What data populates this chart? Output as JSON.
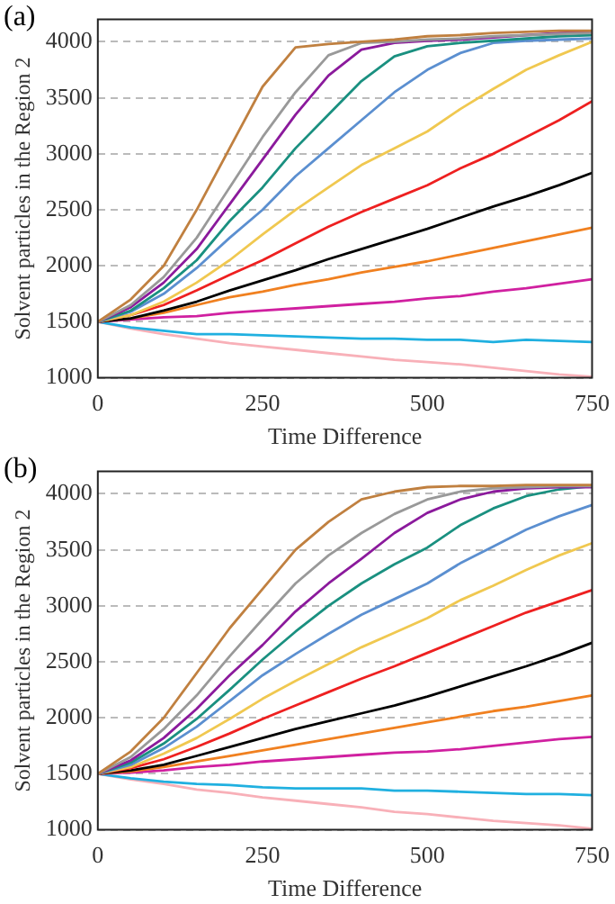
{
  "chart_data": [
    {
      "type": "line",
      "title": "(a)",
      "xlabel": "Time Difference",
      "ylabel": "Solvent particles in the Region 2",
      "x": [
        0,
        50,
        100,
        150,
        200,
        250,
        300,
        350,
        400,
        450,
        500,
        550,
        600,
        650,
        700,
        750
      ],
      "xlim": [
        0,
        750
      ],
      "xticks": [
        0,
        250,
        500,
        750
      ],
      "ylim": [
        1000,
        4200
      ],
      "yticks": [
        1000,
        1500,
        2000,
        2500,
        3000,
        3500,
        4000
      ],
      "grid": "y",
      "line_style": "solid",
      "marker": "none",
      "series": [
        {
          "color": "#c08040",
          "values": [
            1500,
            1700,
            2000,
            2500,
            3050,
            3600,
            3950,
            3980,
            4000,
            4020,
            4050,
            4060,
            4080,
            4090,
            4100,
            4100
          ]
        },
        {
          "color": "#999999",
          "values": [
            1500,
            1650,
            1900,
            2250,
            2700,
            3150,
            3550,
            3880,
            3990,
            4000,
            4020,
            4030,
            4050,
            4060,
            4070,
            4080
          ]
        },
        {
          "color": "#8b1a9c",
          "values": [
            1500,
            1630,
            1850,
            2150,
            2550,
            2950,
            3350,
            3700,
            3930,
            3990,
            4010,
            4020,
            4040,
            4060,
            4080,
            4090
          ]
        },
        {
          "color": "#1a9080",
          "values": [
            1500,
            1600,
            1800,
            2050,
            2400,
            2700,
            3050,
            3350,
            3650,
            3870,
            3960,
            3990,
            4010,
            4030,
            4050,
            4060
          ]
        },
        {
          "color": "#5b8fd0",
          "values": [
            1500,
            1590,
            1750,
            1980,
            2250,
            2500,
            2800,
            3050,
            3300,
            3550,
            3750,
            3900,
            3990,
            4010,
            4020,
            4030
          ]
        },
        {
          "color": "#f0c850",
          "values": [
            1500,
            1560,
            1680,
            1850,
            2050,
            2280,
            2500,
            2700,
            2900,
            3050,
            3200,
            3400,
            3580,
            3750,
            3880,
            4000
          ]
        },
        {
          "color": "#ee2020",
          "values": [
            1500,
            1560,
            1650,
            1780,
            1920,
            2050,
            2200,
            2350,
            2480,
            2600,
            2720,
            2870,
            3000,
            3150,
            3300,
            3470
          ]
        },
        {
          "color": "#000000",
          "values": [
            1500,
            1530,
            1600,
            1680,
            1780,
            1870,
            1960,
            2060,
            2150,
            2240,
            2330,
            2430,
            2530,
            2620,
            2720,
            2830
          ]
        },
        {
          "color": "#f08020",
          "values": [
            1500,
            1530,
            1580,
            1650,
            1720,
            1770,
            1830,
            1880,
            1940,
            1990,
            2040,
            2100,
            2160,
            2220,
            2280,
            2340
          ]
        },
        {
          "color": "#d020a0",
          "values": [
            1500,
            1520,
            1540,
            1550,
            1580,
            1600,
            1620,
            1640,
            1660,
            1680,
            1710,
            1730,
            1770,
            1800,
            1840,
            1880
          ]
        },
        {
          "color": "#20b0e0",
          "values": [
            1500,
            1450,
            1420,
            1390,
            1390,
            1380,
            1370,
            1360,
            1350,
            1350,
            1340,
            1340,
            1320,
            1340,
            1330,
            1320
          ]
        },
        {
          "color": "#f8b0b8",
          "values": [
            1500,
            1440,
            1390,
            1350,
            1310,
            1280,
            1250,
            1220,
            1190,
            1160,
            1140,
            1120,
            1090,
            1060,
            1030,
            1010
          ]
        }
      ]
    },
    {
      "type": "line",
      "title": "(b)",
      "xlabel": "Time Difference",
      "ylabel": "Solvent particles in the Region 2",
      "x": [
        0,
        50,
        100,
        150,
        200,
        250,
        300,
        350,
        400,
        450,
        500,
        550,
        600,
        650,
        700,
        750
      ],
      "xlim": [
        0,
        750
      ],
      "xticks": [
        0,
        250,
        500,
        750
      ],
      "ylim": [
        1000,
        4200
      ],
      "yticks": [
        1000,
        1500,
        2000,
        2500,
        3000,
        3500,
        4000
      ],
      "grid": "y",
      "line_style": "solid",
      "marker": "none",
      "series": [
        {
          "color": "#c08040",
          "values": [
            1500,
            1700,
            2000,
            2400,
            2800,
            3150,
            3500,
            3750,
            3950,
            4020,
            4060,
            4070,
            4070,
            4080,
            4080,
            4080
          ]
        },
        {
          "color": "#999999",
          "values": [
            1500,
            1650,
            1900,
            2200,
            2550,
            2880,
            3200,
            3450,
            3650,
            3820,
            3950,
            4020,
            4050,
            4060,
            4070,
            4070
          ]
        },
        {
          "color": "#8b1a9c",
          "values": [
            1500,
            1620,
            1820,
            2080,
            2380,
            2650,
            2950,
            3200,
            3420,
            3650,
            3830,
            3950,
            4020,
            4050,
            4060,
            4060
          ]
        },
        {
          "color": "#1a9080",
          "values": [
            1500,
            1600,
            1770,
            1990,
            2250,
            2520,
            2770,
            3000,
            3200,
            3370,
            3520,
            3720,
            3870,
            3980,
            4040,
            4070
          ]
        },
        {
          "color": "#5b8fd0",
          "values": [
            1500,
            1580,
            1730,
            1920,
            2150,
            2380,
            2570,
            2750,
            2920,
            3060,
            3200,
            3380,
            3530,
            3680,
            3800,
            3900
          ]
        },
        {
          "color": "#f0c850",
          "values": [
            1500,
            1560,
            1680,
            1820,
            1990,
            2170,
            2330,
            2480,
            2630,
            2760,
            2890,
            3050,
            3180,
            3320,
            3450,
            3560
          ]
        },
        {
          "color": "#ee2020",
          "values": [
            1500,
            1550,
            1630,
            1740,
            1860,
            1990,
            2110,
            2230,
            2350,
            2460,
            2580,
            2700,
            2820,
            2940,
            3040,
            3140
          ]
        },
        {
          "color": "#000000",
          "values": [
            1500,
            1530,
            1580,
            1660,
            1740,
            1820,
            1900,
            1970,
            2040,
            2110,
            2190,
            2280,
            2370,
            2460,
            2560,
            2670
          ]
        },
        {
          "color": "#f08020",
          "values": [
            1500,
            1520,
            1560,
            1610,
            1660,
            1710,
            1760,
            1810,
            1860,
            1910,
            1960,
            2010,
            2060,
            2100,
            2150,
            2200
          ]
        },
        {
          "color": "#d020a0",
          "values": [
            1500,
            1510,
            1530,
            1560,
            1580,
            1610,
            1630,
            1650,
            1670,
            1690,
            1700,
            1720,
            1750,
            1780,
            1810,
            1830
          ]
        },
        {
          "color": "#20b0e0",
          "values": [
            1500,
            1460,
            1430,
            1410,
            1400,
            1380,
            1370,
            1370,
            1370,
            1350,
            1350,
            1340,
            1330,
            1320,
            1320,
            1310
          ]
        },
        {
          "color": "#f8b0b8",
          "values": [
            1500,
            1450,
            1410,
            1360,
            1330,
            1290,
            1260,
            1230,
            1200,
            1160,
            1140,
            1110,
            1080,
            1060,
            1040,
            1010
          ]
        }
      ]
    }
  ]
}
